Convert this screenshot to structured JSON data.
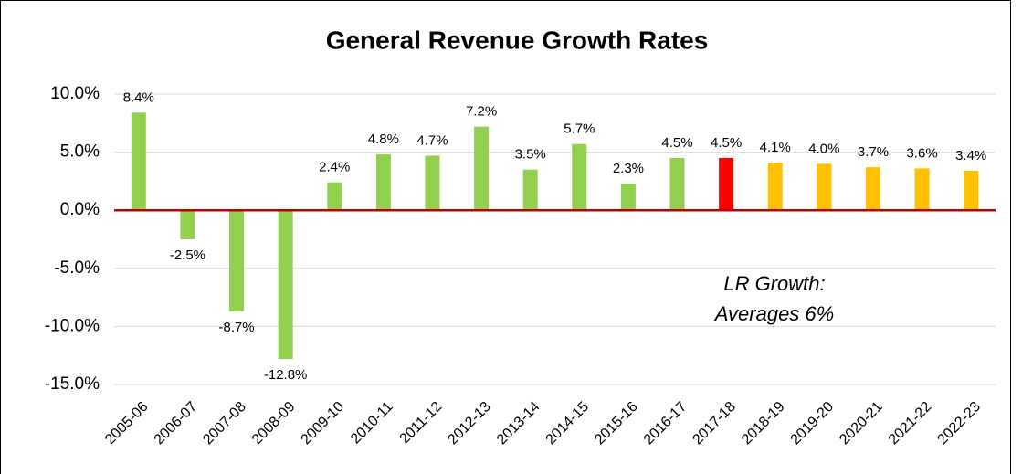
{
  "chart_data": {
    "type": "bar",
    "title": "General Revenue Growth Rates",
    "categories": [
      "2005-06",
      "2006-07",
      "2007-08",
      "2008-09",
      "2009-10",
      "2010-11",
      "2011-12",
      "2012-13",
      "2013-14",
      "2014-15",
      "2015-16",
      "2016-17",
      "2017-18",
      "2018-19",
      "2019-20",
      "2020-21",
      "2021-22",
      "2022-23"
    ],
    "values": [
      8.4,
      -2.5,
      -8.7,
      -12.8,
      2.4,
      4.8,
      4.7,
      7.2,
      3.5,
      5.7,
      2.3,
      4.5,
      4.5,
      4.1,
      4.0,
      3.7,
      3.6,
      3.4
    ],
    "value_labels": [
      "8.4%",
      "-2.5%",
      "-8.7%",
      "-12.8%",
      "2.4%",
      "4.8%",
      "4.7%",
      "7.2%",
      "3.5%",
      "5.7%",
      "2.3%",
      "4.5%",
      "4.5%",
      "4.1%",
      "4.0%",
      "3.7%",
      "3.6%",
      "3.4%"
    ],
    "colors": [
      "#92d050",
      "#92d050",
      "#92d050",
      "#92d050",
      "#92d050",
      "#92d050",
      "#92d050",
      "#92d050",
      "#92d050",
      "#92d050",
      "#92d050",
      "#92d050",
      "#ff0000",
      "#ffc000",
      "#ffc000",
      "#ffc000",
      "#ffc000",
      "#ffc000"
    ],
    "ylim": [
      -15,
      10
    ],
    "yticks": [
      {
        "value": -15,
        "label": "-15.0%"
      },
      {
        "value": -10,
        "label": "-10.0%"
      },
      {
        "value": -5,
        "label": "-5.0%"
      },
      {
        "value": 0,
        "label": "0.0%"
      },
      {
        "value": 5,
        "label": "5.0%"
      },
      {
        "value": 10,
        "label": "10.0%"
      }
    ],
    "grid": true,
    "annotation": [
      "LR Growth:",
      "Averages 6%"
    ]
  }
}
